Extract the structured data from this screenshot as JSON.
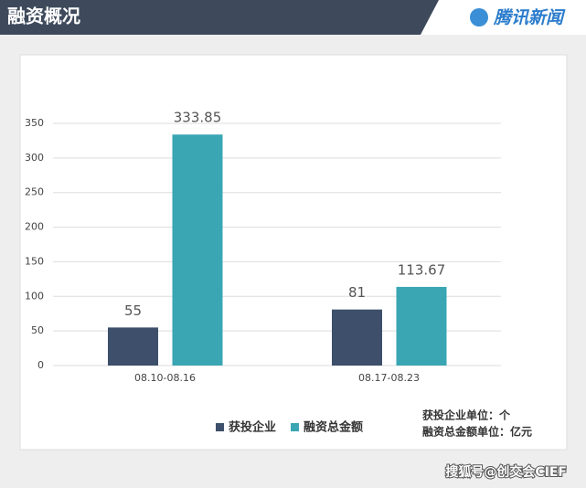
{
  "chart_data": {
    "type": "bar",
    "title": "融资概况",
    "categories": [
      "08.10-08.16",
      "08.17-08.23"
    ],
    "series": [
      {
        "name": "获投企业",
        "color": "#3d4f6b",
        "values": [
          55,
          81
        ]
      },
      {
        "name": "融资总金额",
        "color": "#3aa6b4",
        "values": [
          333.85,
          113.67
        ]
      }
    ],
    "ylim": [
      0,
      350
    ],
    "yticks": [
      0,
      50,
      100,
      150,
      200,
      250,
      300,
      350
    ],
    "grid": true,
    "legend": "bottom",
    "notes": [
      "获投企业单位：个",
      "融资总金额单位：亿元"
    ]
  },
  "brand": "腾讯新闻",
  "source": "搜狐号@创交会CIEF"
}
